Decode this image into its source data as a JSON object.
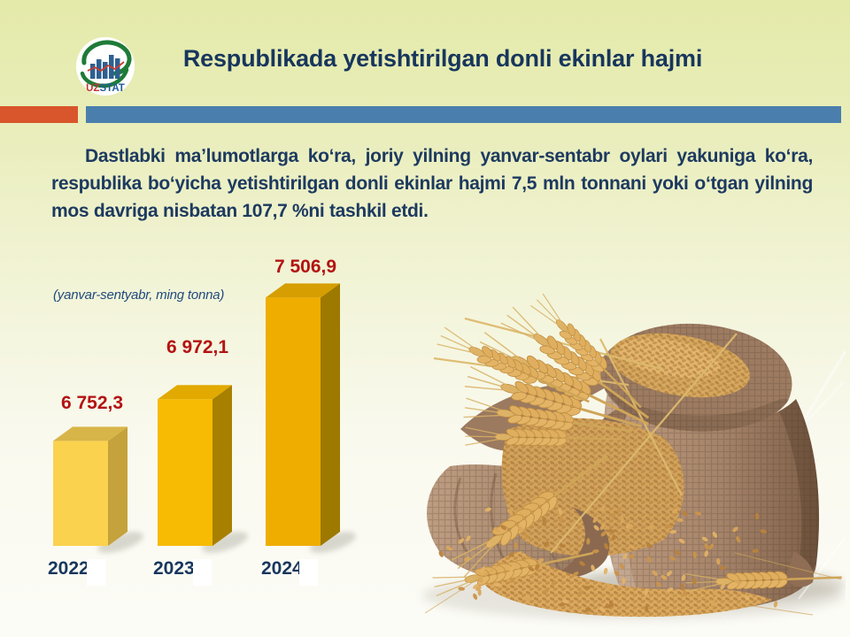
{
  "header": {
    "title": "Respublikada yetishtirilgan donli ekinlar hajmi",
    "logo": {
      "uz": "UZ",
      "stat": "STAT"
    }
  },
  "body": {
    "paragraph": "Dastlabki maʼlumotlarga koʻra, joriy yilning yanvar-sentabr oylari yakuniga koʻra, respublika boʻyicha yetishtirilgan donli ekinlar hajmi  7,5 mln tonnani yoki oʻtgan yilning mos davriga nisbatan 107,7 %ni  tashkil etdi."
  },
  "chart_data": {
    "type": "bar",
    "style": "3d-column",
    "note": "(yanvar-sentyabr, ming tonna)",
    "categories": [
      "2022",
      "2023",
      "2024"
    ],
    "values": [
      6752.3,
      6972.1,
      7506.9
    ],
    "value_labels": [
      "6 752,3",
      "6 972,1",
      "7 506,9"
    ],
    "unit": "ming tonna",
    "ylim": [
      6200,
      7600
    ],
    "grid": false,
    "legend": "none"
  },
  "colors": {
    "background_top": "#E4EAA9",
    "background_bottom": "#FCFCF7",
    "title": "#17365D",
    "paragraph": "#1D3A60",
    "accent_orange": "#D9552B",
    "accent_blue": "#4A7FAD",
    "value_label_red": "#B31312",
    "year_label_navy": "#17365D",
    "note_blue": "#1F497D",
    "bars": [
      {
        "front": "#FBD24E",
        "side": "#C5A23C",
        "top": "#D8B548"
      },
      {
        "front": "#F6BB02",
        "side": "#A88000",
        "top": "#E2A900"
      },
      {
        "front": "#EFAD00",
        "side": "#9E7900",
        "top": "#D69E00"
      }
    ]
  }
}
